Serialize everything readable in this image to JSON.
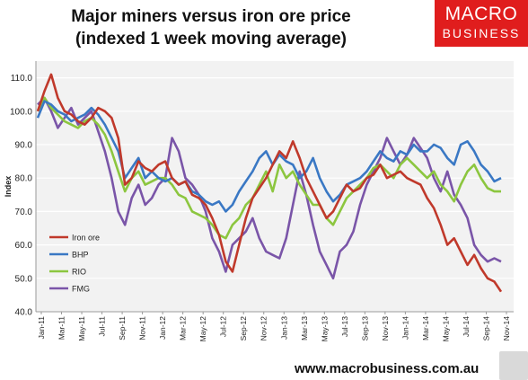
{
  "title_line1": "Major miners versus iron ore price",
  "title_line2": "(indexed 1 week moving average)",
  "logo": {
    "line1": "MACRO",
    "line2": "BUSINESS"
  },
  "footer_url": "www.macrobusiness.com.au",
  "colors": {
    "Iron ore": "#c0392b",
    "BHP": "#3a78c4",
    "RIO": "#8cc63f",
    "FMG": "#7a55a8",
    "background": "#f2f2f2",
    "grid": "#ffffff"
  },
  "chart_data": {
    "type": "line",
    "title": "Major miners versus iron ore price (indexed 1 week moving average)",
    "xlabel": "",
    "ylabel": "Index",
    "ylim": [
      40,
      115
    ],
    "yticks": [
      "40.0",
      "50.0",
      "60.0",
      "70.0",
      "80.0",
      "90.0",
      "100.0",
      "110.0"
    ],
    "xtick_labels": [
      "Jan-11",
      "Mar-11",
      "May-11",
      "Jul-11",
      "Sep-11",
      "Nov-11",
      "Jan-12",
      "Mar-12",
      "May-12",
      "Jul-12",
      "Sep-12",
      "Nov-12",
      "Jan-13",
      "Mar-13",
      "May-13",
      "Jul-13",
      "Sep-13",
      "Nov-13",
      "Jan-14",
      "Mar-14",
      "May-14",
      "Jul-14",
      "Sep-14",
      "Nov-14"
    ],
    "grid": true,
    "legend_position": "left-inside",
    "series": [
      {
        "name": "Iron ore",
        "values": [
          100,
          106,
          111,
          104,
          100,
          99,
          97,
          96,
          98,
          101,
          100,
          98,
          92,
          78,
          80,
          85,
          83,
          82,
          84,
          85,
          80,
          78,
          79,
          75,
          74,
          72,
          68,
          63,
          55,
          52,
          60,
          68,
          74,
          77,
          80,
          84,
          88,
          86,
          91,
          86,
          80,
          76,
          72,
          68,
          70,
          74,
          78,
          76,
          77,
          80,
          81,
          84,
          80,
          81,
          82,
          80,
          79,
          78,
          74,
          71,
          66,
          60,
          62,
          58,
          54,
          57,
          53,
          50,
          49,
          46
        ]
      },
      {
        "name": "BHP",
        "values": [
          98,
          103,
          102,
          100,
          99,
          97,
          98,
          99,
          101,
          99,
          96,
          92,
          88,
          80,
          83,
          86,
          80,
          82,
          80,
          79,
          80,
          78,
          79,
          76,
          75,
          73,
          72,
          73,
          70,
          72,
          76,
          79,
          82,
          86,
          88,
          84,
          87,
          85,
          84,
          80,
          82,
          86,
          80,
          76,
          73,
          75,
          78,
          79,
          80,
          82,
          85,
          88,
          86,
          85,
          88,
          87,
          90,
          88,
          88,
          90,
          89,
          86,
          84,
          90,
          91,
          88,
          84,
          82,
          79,
          80
        ]
      },
      {
        "name": "RIO",
        "values": [
          100,
          104,
          101,
          99,
          97,
          96,
          95,
          97,
          98,
          96,
          93,
          88,
          82,
          76,
          80,
          82,
          78,
          79,
          80,
          80,
          78,
          75,
          74,
          70,
          69,
          68,
          66,
          63,
          62,
          66,
          68,
          72,
          74,
          78,
          82,
          76,
          84,
          80,
          82,
          78,
          75,
          72,
          72,
          68,
          66,
          70,
          74,
          76,
          78,
          80,
          83,
          84,
          82,
          80,
          84,
          86,
          84,
          82,
          80,
          82,
          78,
          76,
          73,
          78,
          82,
          84,
          80,
          77,
          76,
          76
        ]
      },
      {
        "name": "FMG",
        "values": [
          102,
          104,
          100,
          95,
          98,
          101,
          96,
          98,
          100,
          94,
          88,
          80,
          70,
          66,
          74,
          78,
          72,
          74,
          78,
          80,
          92,
          88,
          80,
          78,
          75,
          70,
          62,
          58,
          52,
          60,
          62,
          64,
          68,
          62,
          58,
          57,
          56,
          62,
          72,
          82,
          75,
          66,
          58,
          54,
          50,
          58,
          60,
          64,
          72,
          78,
          82,
          86,
          92,
          88,
          84,
          87,
          92,
          89,
          86,
          80,
          76,
          82,
          75,
          72,
          68,
          60,
          57,
          55,
          56,
          55
        ]
      }
    ]
  }
}
